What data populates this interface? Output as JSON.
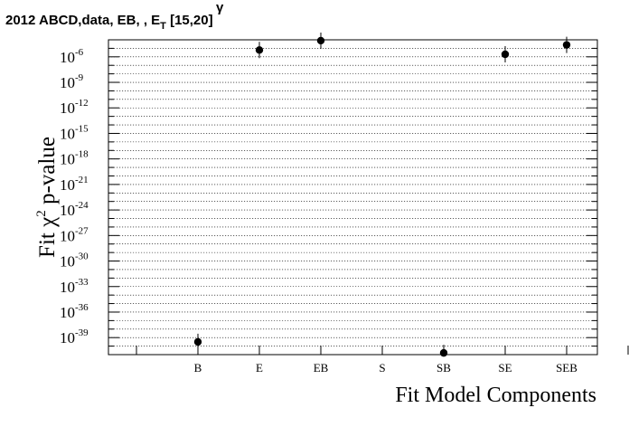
{
  "chart_data": {
    "type": "scatter",
    "title": {
      "prefix": "2012 ABCD,data, EB, , E",
      "sup": "γ",
      "sub": "T",
      "suffix": " [15,20]"
    },
    "ylabel": {
      "main": "Fit χ",
      "sup": "2",
      "rest": " p-value"
    },
    "xlabel": "Fit Model Components",
    "y_scale": "log",
    "ylim_log10": [
      -41,
      -4
    ],
    "grid": {
      "y": true,
      "x": false
    },
    "categories": [
      "B",
      "E",
      "EB",
      "S",
      "SB",
      "SE",
      "SEB"
    ],
    "log10_values": [
      -39.5,
      -5.2,
      -4.1,
      null,
      -40.8,
      -5.7,
      -4.6
    ],
    "y_tick_exponents": [
      -39,
      -36,
      -33,
      -30,
      -27,
      -24,
      -21,
      -18,
      -15,
      -12,
      -9,
      -6
    ],
    "marker_color": "#000000"
  }
}
